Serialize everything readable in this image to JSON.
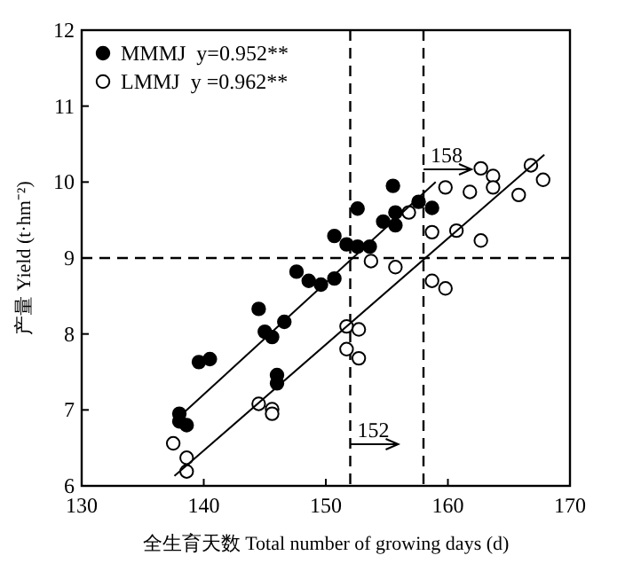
{
  "chart_data": {
    "type": "scatter",
    "xlabel": "全生育天数 Total number of growing days (d)",
    "ylabel": "产量 Yield (t·hm⁻²)",
    "xlim": [
      130,
      170
    ],
    "xticks": [
      130,
      140,
      150,
      160,
      170
    ],
    "ylim": [
      6,
      12
    ],
    "yticks": [
      6,
      7,
      8,
      9,
      10,
      11,
      12
    ],
    "grid": false,
    "legend": "top left",
    "series": [
      {
        "name": "MMMJ  y=0.952**",
        "color": "#000000",
        "marker": "circle",
        "x": [
          138,
          138,
          138.6,
          139.6,
          140.5,
          144.5,
          145,
          145.6,
          146,
          146,
          146.6,
          147.6,
          148.6,
          149.6,
          150.7,
          150.7,
          151.7,
          152.6,
          152.6,
          153.6,
          154.7,
          155.5,
          155.7,
          155.7,
          157.6,
          158.7
        ],
        "values": [
          6.95,
          6.85,
          6.8,
          7.63,
          7.67,
          8.33,
          8.03,
          7.96,
          7.46,
          7.35,
          8.16,
          8.82,
          8.7,
          8.65,
          8.73,
          9.29,
          9.18,
          9.65,
          9.15,
          9.15,
          9.48,
          9.95,
          9.6,
          9.43,
          9.74,
          9.66
        ]
      },
      {
        "name": "LMMJ  y =0.962**",
        "color": "#ffffff",
        "marker": "circle",
        "x": [
          137.5,
          138.6,
          138.6,
          144.5,
          145.6,
          145.6,
          151.7,
          151.7,
          152.7,
          152.7,
          153.7,
          155.7,
          156.8,
          158.7,
          158.7,
          159.8,
          159.8,
          160.7,
          161.8,
          162.7,
          162.7,
          163.7,
          163.7,
          165.8,
          166.8,
          167.8
        ],
        "values": [
          6.56,
          6.37,
          6.19,
          7.08,
          7.01,
          6.95,
          8.1,
          7.8,
          8.06,
          7.68,
          8.96,
          8.88,
          9.6,
          8.7,
          9.34,
          8.6,
          9.93,
          9.36,
          9.87,
          10.18,
          9.23,
          10.08,
          9.93,
          9.83,
          10.22,
          10.03
        ]
      },
      {
        "type": "line",
        "color": "#000000",
        "x": [
          138,
          159
        ],
        "values": [
          6.91,
          10.0
        ]
      },
      {
        "type": "line",
        "color": "#000000",
        "x": [
          137.6,
          167.9
        ],
        "values": [
          6.13,
          10.36
        ]
      }
    ],
    "ref_lines": [
      {
        "axis": "y",
        "value": 9,
        "line_style": "dashed",
        "color": "#000000"
      },
      {
        "axis": "x",
        "value": 158,
        "label": "158",
        "line_style": "dashed",
        "color": "#000000"
      },
      {
        "axis": "x",
        "value": 152,
        "label": "152",
        "line_style": "dashed",
        "color": "#000000"
      }
    ]
  }
}
